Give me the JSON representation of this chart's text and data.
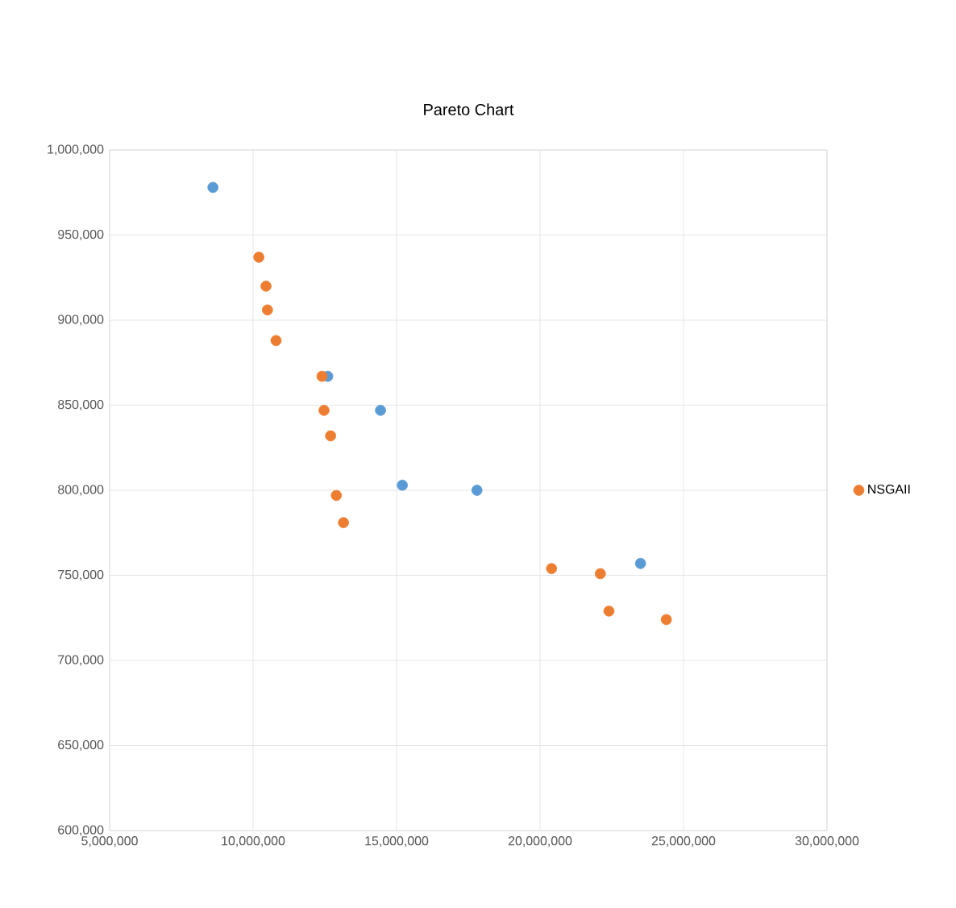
{
  "chart_data": {
    "type": "scatter",
    "title": "Pareto Chart",
    "series": [
      {
        "color": "#5b9bd5",
        "x": [
          8600000,
          12600000,
          14440000,
          15200000,
          17800000,
          23500000
        ],
        "values": [
          978000,
          867000,
          847000,
          803000,
          800000,
          757000
        ]
      },
      {
        "name": "NSGAII",
        "color": "#ed7d31",
        "x": [
          10200000,
          10450000,
          10500000,
          10800000,
          12400000,
          12470000,
          12700000,
          12900000,
          13150000,
          20400000,
          22100000,
          22400000,
          24400000
        ],
        "values": [
          937000,
          920000,
          906000,
          888000,
          867000,
          847000,
          832000,
          797000,
          781000,
          754000,
          751000,
          729000,
          724000
        ]
      }
    ],
    "xlim": [
      5000000,
      30000000
    ],
    "xticks": [
      {
        "value": 5000000,
        "label": "5,000,000"
      },
      {
        "value": 10000000,
        "label": "10,000,000"
      },
      {
        "value": 15000000,
        "label": "15,000,000"
      },
      {
        "value": 20000000,
        "label": "20,000,000"
      },
      {
        "value": 25000000,
        "label": "25,000,000"
      },
      {
        "value": 30000000,
        "label": "30,000,000"
      }
    ],
    "ylim": [
      600000,
      1000000
    ],
    "yticks": [
      {
        "value": 600000,
        "label": "600,000"
      },
      {
        "value": 650000,
        "label": "650,000"
      },
      {
        "value": 700000,
        "label": "700,000"
      },
      {
        "value": 750000,
        "label": "750,000"
      },
      {
        "value": 800000,
        "label": "800,000"
      },
      {
        "value": 850000,
        "label": "850,000"
      },
      {
        "value": 900000,
        "label": "900,000"
      },
      {
        "value": 950000,
        "label": "950,000"
      },
      {
        "value": 1000000,
        "label": "1,000,000"
      }
    ],
    "grid": true,
    "legend": "right",
    "marker": "circle"
  }
}
